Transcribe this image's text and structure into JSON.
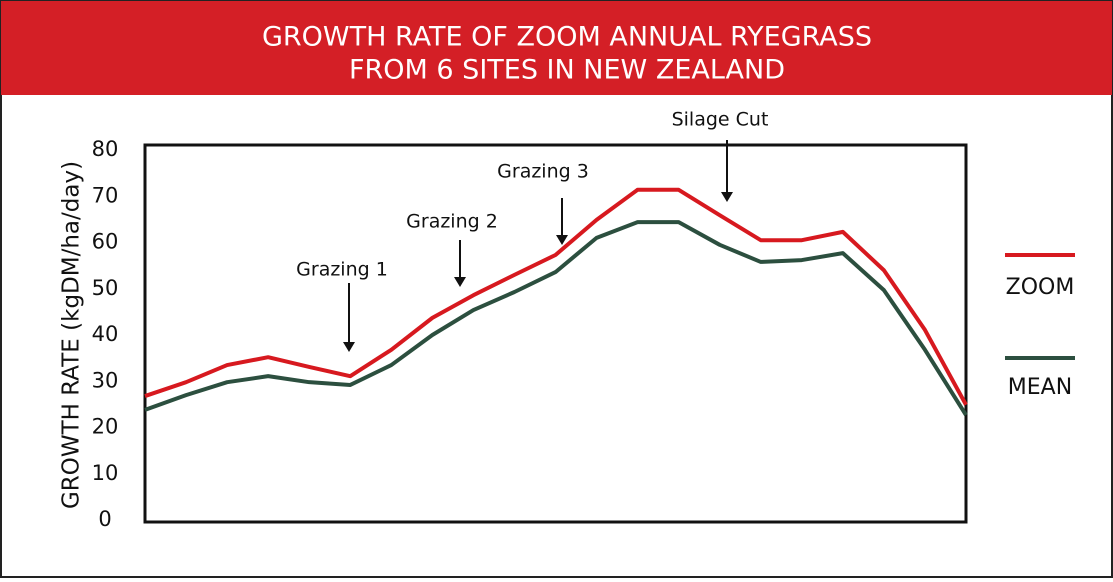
{
  "chart_data": {
    "type": "line",
    "title": [
      "GROWTH RATE OF ZOOM ANNUAL RYEGRASS",
      "FROM 6 SITES IN NEW ZEALAND"
    ],
    "y_label": "GROWTH RATE (kgDM/ha/day)",
    "ylim": [
      0,
      80
    ],
    "yticks": [
      0,
      10,
      20,
      30,
      40,
      50,
      60,
      70,
      80
    ],
    "series": [
      {
        "name": "ZOOM",
        "color": "#d7191f",
        "values": [
          26.8,
          29.8,
          33.5,
          35.2,
          33.1,
          31.1,
          36.8,
          43.7,
          48.6,
          53,
          57.3,
          64.9,
          71.4,
          71.4,
          65.9,
          60.5,
          60.5,
          62.3,
          54,
          41.1,
          24.9
        ]
      },
      {
        "name": "MEAN",
        "color": "#2c4f3f",
        "values": [
          23.8,
          27,
          29.8,
          31.1,
          29.8,
          29.2,
          33.5,
          40,
          45.4,
          49.3,
          53.6,
          61,
          64.4,
          64.4,
          59.5,
          55.8,
          56.2,
          57.7,
          49.7,
          36.8,
          22.7
        ]
      }
    ],
    "annotations": [
      "Grazing 1",
      "Grazing 2",
      "Grazing 3",
      "Silage Cut"
    ]
  }
}
